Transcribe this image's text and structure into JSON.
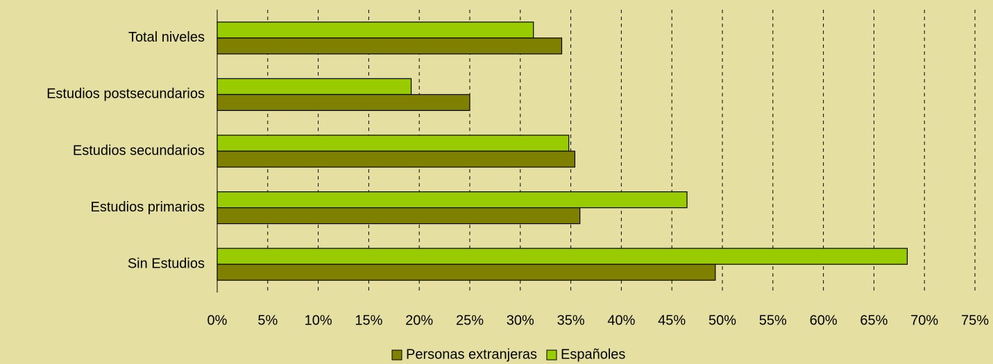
{
  "chart_data": {
    "type": "hbar",
    "categories": [
      "Total niveles",
      "Estudios postsecundarios",
      "Estudios secundarios",
      "Estudios primarios",
      "Sin Estudios"
    ],
    "series": [
      {
        "name": "Personas extranjeras",
        "color": "#808000",
        "values": [
          34.1,
          25.0,
          35.4,
          35.9,
          49.3
        ]
      },
      {
        "name": "Españoles",
        "color": "#99cc00",
        "values": [
          31.3,
          19.2,
          34.8,
          46.5,
          68.3
        ]
      }
    ],
    "xlim": [
      0,
      75
    ],
    "xticks": [
      {
        "value": 0,
        "label": "0%"
      },
      {
        "value": 5,
        "label": "5%"
      },
      {
        "value": 10,
        "label": "10%"
      },
      {
        "value": 15,
        "label": "15%"
      },
      {
        "value": 20,
        "label": "20%"
      },
      {
        "value": 25,
        "label": "25%"
      },
      {
        "value": 30,
        "label": "30%"
      },
      {
        "value": 35,
        "label": "35%"
      },
      {
        "value": 40,
        "label": "40%"
      },
      {
        "value": 45,
        "label": "45%"
      },
      {
        "value": 50,
        "label": "50%"
      },
      {
        "value": 55,
        "label": "55%"
      },
      {
        "value": 60,
        "label": "60%"
      },
      {
        "value": 65,
        "label": "65%"
      },
      {
        "value": 70,
        "label": "70%"
      },
      {
        "value": 75,
        "label": "75%"
      }
    ],
    "grid": true,
    "legend": "bottom"
  }
}
